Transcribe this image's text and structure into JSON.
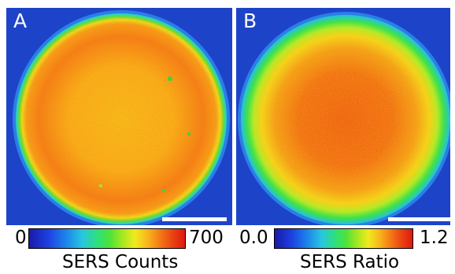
{
  "panels": [
    {
      "label": "A",
      "colorbar": {
        "min": "0",
        "max": "700",
        "title": "SERS Counts"
      }
    },
    {
      "label": "B",
      "colorbar": {
        "min": "0.0",
        "max": "1.2",
        "title": "SERS Ratio"
      }
    }
  ],
  "colors": {
    "background_blue": "#1a3fc4",
    "ring_green": "#45e43c",
    "ring_yellow": "#f3e81f",
    "core_orange": "#f39a1c",
    "core_red": "#ea4614",
    "scale_bar": "#ffffff"
  }
}
